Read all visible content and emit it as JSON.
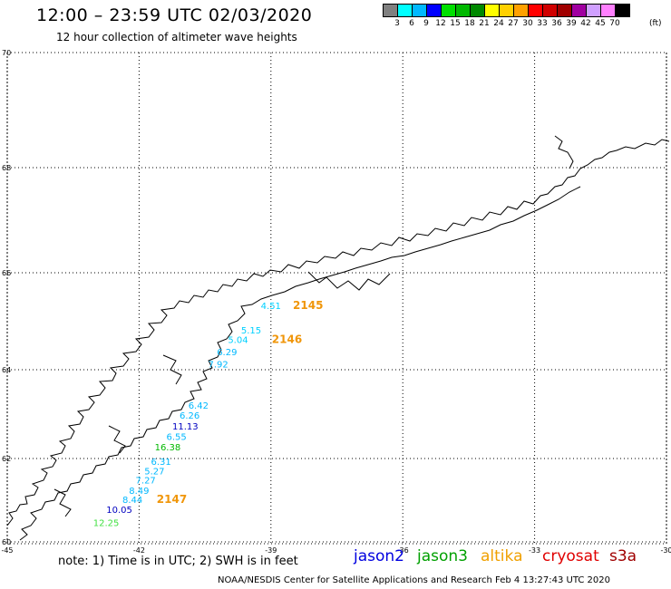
{
  "header": {
    "title": "12:00 – 23:59 UTC 02/03/2020",
    "subtitle": "12 hour collection of altimeter wave heights"
  },
  "legend": {
    "colors": [
      "#808080",
      "#00ffff",
      "#00b8ff",
      "#0000ff",
      "#00e000",
      "#00b800",
      "#008800",
      "#ffff00",
      "#ffd000",
      "#ffa000",
      "#ff0000",
      "#d00000",
      "#a00000",
      "#a000a0",
      "#d0a0ff",
      "#ff80ff",
      "#000000"
    ],
    "labels": [
      "3",
      "6",
      "9",
      "12",
      "15",
      "18",
      "21",
      "24",
      "27",
      "30",
      "33",
      "36",
      "39",
      "42",
      "45",
      "70"
    ],
    "unit": "(ft)"
  },
  "map": {
    "lat_labels": [
      "70",
      "68",
      "66",
      "64",
      "62",
      "60"
    ],
    "lon_labels": [
      "-45",
      "-42",
      "-39",
      "-36",
      "-33",
      "-30"
    ]
  },
  "observations": [
    {
      "value": "4.51",
      "lon": -39.0,
      "lat": 65.25,
      "color": "#00d0ff"
    },
    {
      "value": "5.15",
      "lon": -39.45,
      "lat": 64.75,
      "color": "#00d0ff"
    },
    {
      "value": "5.04",
      "lon": -39.75,
      "lat": 64.55,
      "color": "#00d0ff"
    },
    {
      "value": "6.29",
      "lon": -40.0,
      "lat": 64.3,
      "color": "#00b8ff"
    },
    {
      "value": "7.92",
      "lon": -40.2,
      "lat": 64.05,
      "color": "#00b8ff"
    },
    {
      "value": "6.42",
      "lon": -40.65,
      "lat": 63.12,
      "color": "#00b8ff"
    },
    {
      "value": "6.26",
      "lon": -40.85,
      "lat": 62.9,
      "color": "#00b8ff"
    },
    {
      "value": "11.13",
      "lon": -40.95,
      "lat": 62.65,
      "color": "#0000c0"
    },
    {
      "value": "6.55",
      "lon": -41.15,
      "lat": 62.42,
      "color": "#00b8ff"
    },
    {
      "value": "16.38",
      "lon": -41.35,
      "lat": 62.18,
      "color": "#00b800"
    },
    {
      "value": "6.31",
      "lon": -41.5,
      "lat": 61.85,
      "color": "#00b8ff"
    },
    {
      "value": "5.27",
      "lon": -41.65,
      "lat": 61.62,
      "color": "#00b8ff"
    },
    {
      "value": "7.27",
      "lon": -41.85,
      "lat": 61.4,
      "color": "#00b8ff"
    },
    {
      "value": "8.49",
      "lon": -42.0,
      "lat": 61.15,
      "color": "#00b8ff"
    },
    {
      "value": "8.44",
      "lon": -42.15,
      "lat": 60.93,
      "color": "#00b8ff"
    },
    {
      "value": "10.05",
      "lon": -42.45,
      "lat": 60.7,
      "color": "#0000c0"
    },
    {
      "value": "12.25",
      "lon": -42.75,
      "lat": 60.38,
      "color": "#40e040"
    }
  ],
  "passes": [
    {
      "label": "2145",
      "lon": -38.5,
      "lat": 65.25
    },
    {
      "label": "2146",
      "lon": -38.98,
      "lat": 64.55
    },
    {
      "label": "2147",
      "lon": -41.6,
      "lat": 60.93
    }
  ],
  "footer": {
    "note": "note:  1) Time is in UTC;  2) SWH is in feet",
    "satellites": [
      {
        "name": "jason2",
        "color": "#0000e0"
      },
      {
        "name": "jason3",
        "color": "#00a000"
      },
      {
        "name": "altika",
        "color": "#f0a000"
      },
      {
        "name": "cryosat",
        "color": "#e00000"
      },
      {
        "name": "s3a",
        "color": "#a00000"
      }
    ],
    "credit": "NOAA/NESDIS Center for Satellite Applications and Research    Feb  4 13:27:43 UTC 2020"
  }
}
